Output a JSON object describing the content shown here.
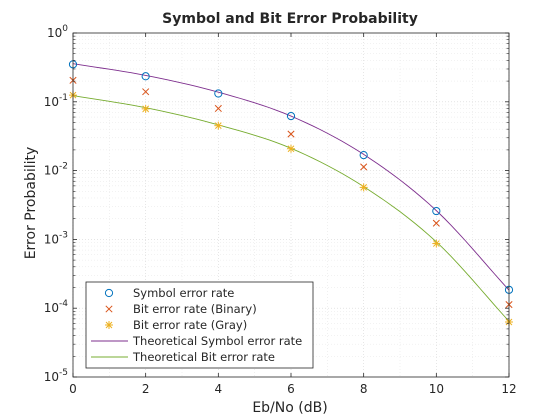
{
  "chart_data": {
    "type": "line",
    "title": "Symbol and Bit Error Probability",
    "xlabel": "Eb/No (dB)",
    "ylabel": "Error Probability",
    "xlim": [
      0,
      12
    ],
    "ylim": [
      1e-05,
      1
    ],
    "yscale": "log",
    "grid": true,
    "legend_position": "bottom-left",
    "x_ticks": [
      0,
      2,
      4,
      6,
      8,
      10,
      12
    ],
    "x_tick_labels": [
      "0",
      "2",
      "4",
      "6",
      "8",
      "10",
      "12"
    ],
    "y_ticks": [
      1,
      0.1,
      0.01,
      0.001,
      0.0001,
      1e-05
    ],
    "y_tick_labels": [
      {
        "base": "10",
        "exp": "0"
      },
      {
        "base": "10",
        "exp": "-1"
      },
      {
        "base": "10",
        "exp": "-2"
      },
      {
        "base": "10",
        "exp": "-3"
      },
      {
        "base": "10",
        "exp": "-4"
      },
      {
        "base": "10",
        "exp": "-5"
      }
    ],
    "x": [
      0,
      2,
      4,
      6,
      8,
      10,
      12
    ],
    "series": [
      {
        "name": "Symbol error rate",
        "marker": "circle",
        "color": "#0072bd",
        "values": [
          0.35,
          0.235,
          0.132,
          0.062,
          0.0168,
          0.00258,
          0.000185
        ]
      },
      {
        "name": "Bit error rate (Binary)",
        "marker": "x",
        "color": "#d95319",
        "values": [
          0.205,
          0.14,
          0.08,
          0.034,
          0.0113,
          0.00172,
          0.000113
        ]
      },
      {
        "name": "Bit error rate (Gray)",
        "marker": "asterisk",
        "color": "#edb120",
        "values": [
          0.125,
          0.079,
          0.045,
          0.0208,
          0.0057,
          0.00087,
          6.3e-05
        ]
      },
      {
        "name": "Theoretical Symbol error rate",
        "marker": "none",
        "color": "#7e2f8e",
        "values": [
          0.358,
          0.242,
          0.138,
          0.062,
          0.0172,
          0.00262,
          0.000183
        ]
      },
      {
        "name": "Theoretical Bit error rate",
        "marker": "none",
        "color": "#77ac30",
        "values": [
          0.123,
          0.082,
          0.0462,
          0.0211,
          0.00585,
          0.000921,
          6.45e-05
        ]
      }
    ]
  }
}
